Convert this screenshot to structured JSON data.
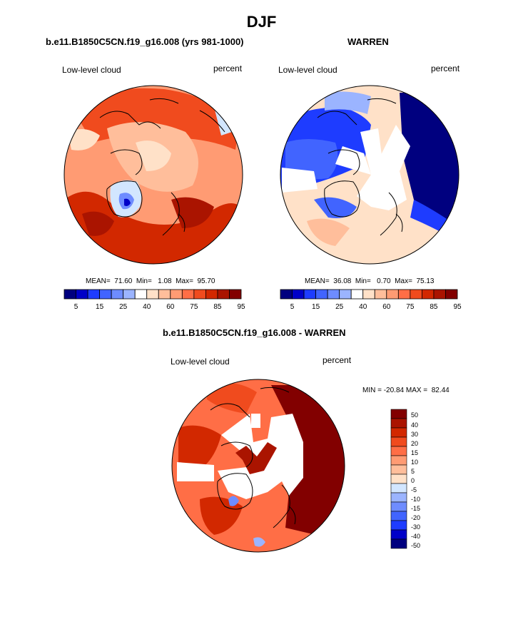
{
  "page_title": "DJF",
  "colors": {
    "blue_scale": [
      "#00007f",
      "#0000c8",
      "#1e3cff",
      "#4164ff",
      "#6e8cff",
      "#9bb4ff",
      "#d2e6ff"
    ],
    "red_scale": [
      "#ffe1c8",
      "#ffbe9b",
      "#ff9b73",
      "#ff6e46",
      "#f04b1e",
      "#d22800",
      "#aa1400",
      "#820000"
    ]
  },
  "chart_data": [
    {
      "type": "heatmap",
      "title": "b.e11.B1850C5CN.f19_g16.008 (yrs 981-1000)",
      "left_label": "Low-level cloud",
      "right_label": "percent",
      "stats": {
        "mean": 71.6,
        "min": 1.08,
        "max": 95.7
      },
      "stats_text": "MEAN=  71.60  Min=   1.08  Max=  95.70",
      "colorbar_labels": [
        "5",
        "15",
        "25",
        "40",
        "60",
        "75",
        "85",
        "95"
      ],
      "colorbar_levels": 13
    },
    {
      "type": "heatmap",
      "title": "WARREN",
      "left_label": "Low-level cloud",
      "right_label": "percent",
      "stats": {
        "mean": 36.08,
        "min": 0.7,
        "max": 75.13
      },
      "stats_text": "MEAN=  36.08  Min=   0.70  Max=  75.13",
      "colorbar_labels": [
        "5",
        "15",
        "25",
        "40",
        "60",
        "75",
        "85",
        "95"
      ],
      "colorbar_levels": 13
    },
    {
      "type": "heatmap",
      "title": "b.e11.B1850C5CN.f19_g16.008 - WARREN",
      "left_label": "Low-level cloud",
      "right_label": "percent",
      "stats": {
        "min": -20.84,
        "max": 82.44
      },
      "stats_text": "MIN = -20.84 MAX =  82.44",
      "colorbar_labels": [
        "50",
        "40",
        "30",
        "20",
        "15",
        "10",
        "5",
        "0",
        "-5",
        "-10",
        "-15",
        "-20",
        "-30",
        "-40",
        "-50"
      ]
    }
  ]
}
